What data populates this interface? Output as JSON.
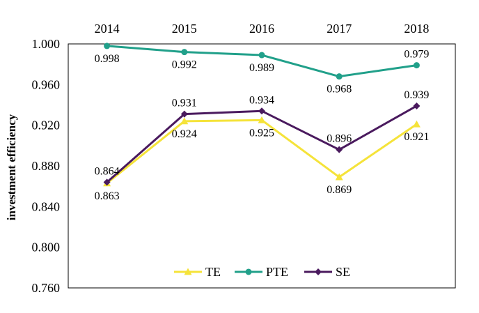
{
  "chart_data": {
    "type": "line",
    "categories": [
      "2014",
      "2015",
      "2016",
      "2017",
      "2018"
    ],
    "ylabel": "investment efficiency",
    "ylim": [
      0.76,
      1.0
    ],
    "yticks": [
      "0.760",
      "0.800",
      "0.840",
      "0.880",
      "0.920",
      "0.960",
      "1.000"
    ],
    "grid": false,
    "legend_position": "bottom-center",
    "series": [
      {
        "name": "TE",
        "color": "#f5e33a",
        "marker": "triangle",
        "values": [
          0.863,
          0.924,
          0.925,
          0.869,
          0.921
        ],
        "labels": [
          "0.863",
          "0.924",
          "0.925",
          "0.869",
          "0.921"
        ],
        "label_side": [
          "below",
          "below",
          "below",
          "below",
          "below"
        ]
      },
      {
        "name": "PTE",
        "color": "#21a08a",
        "marker": "circle",
        "values": [
          0.998,
          0.992,
          0.989,
          0.968,
          0.979
        ],
        "labels": [
          "0.998",
          "0.992",
          "0.989",
          "0.968",
          "0.979"
        ],
        "label_side": [
          "below",
          "below",
          "below",
          "below",
          "above"
        ]
      },
      {
        "name": "SE",
        "color": "#4a1a5e",
        "marker": "diamond",
        "values": [
          0.864,
          0.931,
          0.934,
          0.896,
          0.939
        ],
        "labels": [
          "0.864",
          "0.931",
          "0.934",
          "0.896",
          "0.939"
        ],
        "label_side": [
          "above",
          "above",
          "above",
          "above",
          "above"
        ]
      }
    ]
  }
}
